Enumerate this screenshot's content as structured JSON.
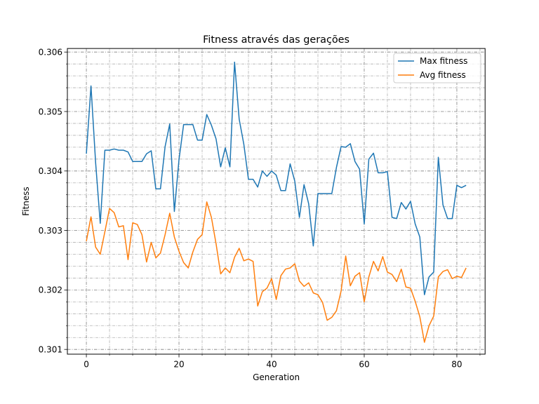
{
  "chart_data": {
    "type": "line",
    "title": "Fitness através das gerações",
    "xlabel": "Generation",
    "ylabel": "Fitness",
    "xlim": [
      -4.1,
      86.1
    ],
    "ylim": [
      0.30092,
      0.30606
    ],
    "xticks": [
      0,
      20,
      40,
      60,
      80
    ],
    "xtick_labels": [
      "0",
      "20",
      "40",
      "60",
      "80"
    ],
    "xminor_step": 5,
    "yticks": [
      0.301,
      0.302,
      0.303,
      0.304,
      0.305,
      0.306
    ],
    "ytick_labels": [
      "0.301",
      "0.302",
      "0.303",
      "0.304",
      "0.305",
      "0.306"
    ],
    "yminor_step": 0.0002,
    "grid": true,
    "legend_position": "upper right",
    "series": [
      {
        "name": "Max fitness",
        "color": "#1f77b4",
        "values": [
          0.30429,
          0.30543,
          0.30414,
          0.30312,
          0.30435,
          0.30435,
          0.30437,
          0.30435,
          0.30435,
          0.30432,
          0.30416,
          0.30416,
          0.30416,
          0.30429,
          0.30434,
          0.3037,
          0.3037,
          0.30441,
          0.30479,
          0.30332,
          0.30419,
          0.30478,
          0.30478,
          0.30478,
          0.30452,
          0.30452,
          0.30495,
          0.30477,
          0.30454,
          0.30407,
          0.30439,
          0.30407,
          0.30583,
          0.30487,
          0.30445,
          0.30386,
          0.30386,
          0.30373,
          0.304,
          0.30391,
          0.304,
          0.30393,
          0.30367,
          0.30367,
          0.30412,
          0.30383,
          0.30322,
          0.30377,
          0.30345,
          0.30274,
          0.30362,
          0.30362,
          0.30362,
          0.30362,
          0.30406,
          0.30441,
          0.3044,
          0.30446,
          0.30416,
          0.30403,
          0.30311,
          0.3042,
          0.3043,
          0.30397,
          0.30397,
          0.30399,
          0.30322,
          0.3032,
          0.30347,
          0.30336,
          0.30349,
          0.30311,
          0.30289,
          0.30192,
          0.30222,
          0.3023,
          0.30423,
          0.30343,
          0.3032,
          0.3032,
          0.30376,
          0.30372,
          0.30376
        ]
      },
      {
        "name": "Avg fitness",
        "color": "#ff7f0e",
        "values": [
          0.30282,
          0.30323,
          0.30272,
          0.3026,
          0.30298,
          0.30337,
          0.3033,
          0.30306,
          0.30308,
          0.30251,
          0.30313,
          0.3031,
          0.30293,
          0.30247,
          0.3028,
          0.30254,
          0.30262,
          0.30293,
          0.30329,
          0.30289,
          0.30265,
          0.30246,
          0.30237,
          0.30264,
          0.30285,
          0.30293,
          0.30348,
          0.30322,
          0.30278,
          0.30227,
          0.30237,
          0.30229,
          0.30255,
          0.3027,
          0.30249,
          0.30252,
          0.30248,
          0.30173,
          0.30197,
          0.30203,
          0.30219,
          0.30184,
          0.30224,
          0.30235,
          0.30237,
          0.30244,
          0.30215,
          0.30206,
          0.30212,
          0.30195,
          0.30192,
          0.30179,
          0.30149,
          0.30154,
          0.30165,
          0.30198,
          0.30257,
          0.30207,
          0.30223,
          0.30229,
          0.3018,
          0.30222,
          0.30248,
          0.30232,
          0.30256,
          0.3023,
          0.30226,
          0.30214,
          0.30235,
          0.30205,
          0.30203,
          0.30181,
          0.30155,
          0.30112,
          0.3014,
          0.30156,
          0.30222,
          0.30231,
          0.30234,
          0.30219,
          0.30223,
          0.30221,
          0.30237
        ]
      }
    ]
  }
}
